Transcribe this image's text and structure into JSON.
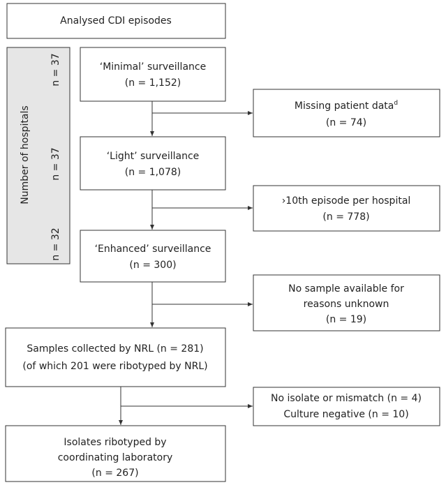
{
  "header": {
    "title": "Analysed CDI episodes"
  },
  "side_panel": {
    "label": "Number of hospitals",
    "counts": [
      "n = 37",
      "n = 37",
      "n = 32"
    ]
  },
  "nodes": [
    {
      "lines": [
        "‘Minimal’ surveillance",
        "(n = 1,152)"
      ]
    },
    {
      "lines": [
        "‘Light’ surveillance",
        "(n = 1,078)"
      ]
    },
    {
      "lines": [
        "‘Enhanced’ surveillance",
        "(n = 300)"
      ]
    },
    {
      "lines": [
        "Samples collected by NRL (n = 281)",
        "(of which 201 were ribotyped by NRL)"
      ]
    },
    {
      "lines": [
        "Isolates ribotyped by",
        "coordinating laboratory",
        "(n = 267)"
      ]
    }
  ],
  "exclusions": [
    {
      "lines": [
        "Missing patient data",
        "(n = 74)"
      ],
      "superscript": "d"
    },
    {
      "lines": [
        "›10th episode per hospital",
        "(n = 778)"
      ]
    },
    {
      "lines": [
        "No sample available for",
        "reasons unknown",
        "(n = 19)"
      ]
    },
    {
      "lines": [
        "No isolate or mismatch (n = 4)",
        "Culture negative (n = 10)"
      ]
    }
  ]
}
